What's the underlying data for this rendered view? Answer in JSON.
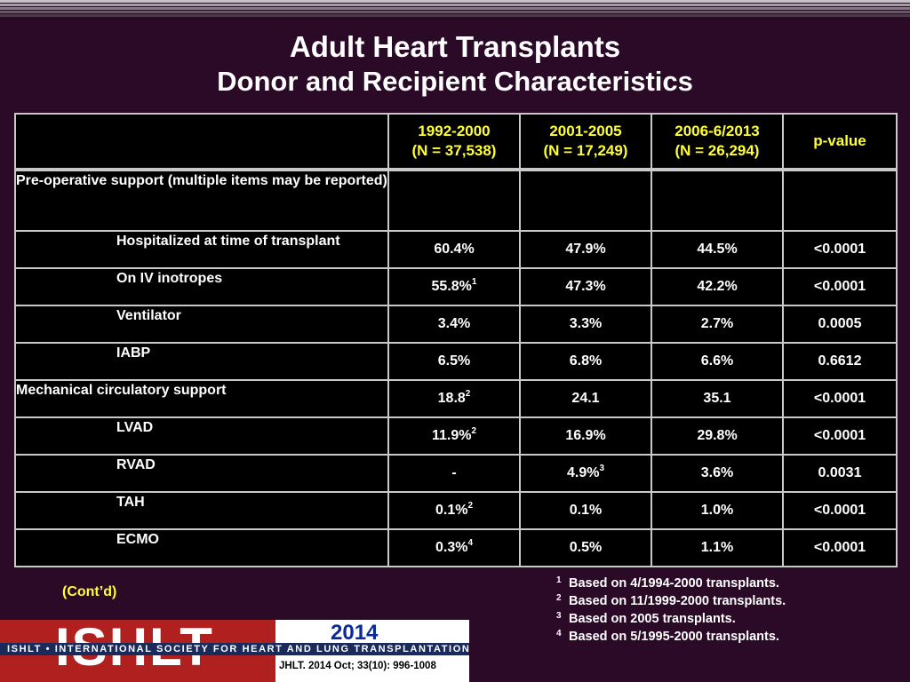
{
  "title": "Adult Heart Transplants",
  "subtitle": "Donor and Recipient Characteristics",
  "table": {
    "headers": [
      {
        "line1": "1992-2000",
        "line2": "(N = 37,538)"
      },
      {
        "line1": "2001-2005",
        "line2": "(N = 17,249)"
      },
      {
        "line1": "2006-6/2013",
        "line2": "(N = 26,294)"
      },
      {
        "line1": "p-value",
        "line2": ""
      }
    ],
    "rows": [
      {
        "label": "Pre-operative support (multiple items may be reported)",
        "indent": false,
        "cells": [
          [
            "",
            ""
          ],
          [
            "",
            ""
          ],
          [
            "",
            ""
          ],
          [
            "",
            ""
          ]
        ]
      },
      {
        "label": "Hospitalized at time of transplant",
        "indent": true,
        "cells": [
          [
            "60.4%",
            ""
          ],
          [
            "47.9%",
            ""
          ],
          [
            "44.5%",
            ""
          ],
          [
            "<0.0001",
            ""
          ]
        ]
      },
      {
        "label": "On IV inotropes",
        "indent": true,
        "cells": [
          [
            "55.8%",
            "1"
          ],
          [
            "47.3%",
            ""
          ],
          [
            "42.2%",
            ""
          ],
          [
            "<0.0001",
            ""
          ]
        ]
      },
      {
        "label": "Ventilator",
        "indent": true,
        "cells": [
          [
            "3.4%",
            ""
          ],
          [
            "3.3%",
            ""
          ],
          [
            "2.7%",
            ""
          ],
          [
            "0.0005",
            ""
          ]
        ]
      },
      {
        "label": "IABP",
        "indent": true,
        "cells": [
          [
            "6.5%",
            ""
          ],
          [
            "6.8%",
            ""
          ],
          [
            "6.6%",
            ""
          ],
          [
            "0.6612",
            ""
          ]
        ]
      },
      {
        "label": "Mechanical circulatory support",
        "indent": false,
        "cells": [
          [
            "18.8",
            "2"
          ],
          [
            "24.1",
            ""
          ],
          [
            "35.1",
            ""
          ],
          [
            "<0.0001",
            ""
          ]
        ]
      },
      {
        "label": "LVAD",
        "indent": true,
        "cells": [
          [
            "11.9%",
            "2"
          ],
          [
            "16.9%",
            ""
          ],
          [
            "29.8%",
            ""
          ],
          [
            "<0.0001",
            ""
          ]
        ]
      },
      {
        "label": "RVAD",
        "indent": true,
        "cells": [
          [
            "-",
            ""
          ],
          [
            "4.9%",
            "3"
          ],
          [
            "3.6%",
            ""
          ],
          [
            "0.0031",
            ""
          ]
        ]
      },
      {
        "label": "TAH",
        "indent": true,
        "cells": [
          [
            "0.1%",
            "2"
          ],
          [
            "0.1%",
            ""
          ],
          [
            "1.0%",
            ""
          ],
          [
            "<0.0001",
            ""
          ]
        ]
      },
      {
        "label": "ECMO",
        "indent": true,
        "cells": [
          [
            "0.3%",
            "4"
          ],
          [
            "0.5%",
            ""
          ],
          [
            "1.1%",
            ""
          ],
          [
            "<0.0001",
            ""
          ]
        ]
      }
    ]
  },
  "contd": "(Cont’d)",
  "footnotes": [
    {
      "num": "1",
      "text": "Based on 4/1994-2000 transplants."
    },
    {
      "num": "2",
      "text": "Based on 11/1999-2000 transplants."
    },
    {
      "num": "3",
      "text": "Based on 2005 transplants."
    },
    {
      "num": "4",
      "text": "Based on 5/1995-2000 transplants."
    }
  ],
  "logo": {
    "letters": "ISHLT",
    "year": "2014",
    "society": "ISHLT • INTERNATIONAL SOCIETY FOR HEART AND LUNG TRANSPLANTATION",
    "citation": "JHLT. 2014 Oct; 33(10): 996-1008"
  },
  "colors": {
    "background": "#2a0a26",
    "header_text": "#ffff33",
    "logo_red": "#b0201e"
  }
}
